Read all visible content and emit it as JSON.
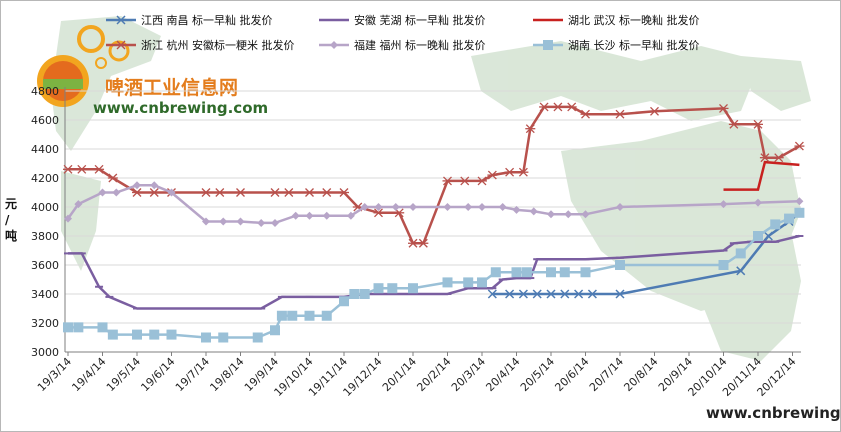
{
  "logo": {
    "name": "啤酒工业信息网",
    "url": "www.cnbrewing.com"
  },
  "footer_url": "www.cnbrewing.com",
  "colors": {
    "jiangxi": "#4e7bb3",
    "anhui": "#7a5ea0",
    "hubei": "#c8211f",
    "zhejiang": "#b8514c",
    "fujian": "#b7a5c8",
    "hunan": "#9ac0d7",
    "gridline": "#d9d9d9",
    "map": "#d4e3d2"
  },
  "chart_data": {
    "type": "line",
    "ylabel": "元/吨",
    "ylim": [
      3000,
      4800
    ],
    "yticks": [
      3000,
      3200,
      3400,
      3600,
      3800,
      4000,
      4200,
      4400,
      4600,
      4800
    ],
    "x_labels": [
      "19/3/14",
      "19/4/14",
      "19/5/14",
      "19/6/14",
      "19/7/14",
      "19/8/14",
      "19/9/14",
      "19/10/14",
      "19/11/14",
      "19/12/14",
      "20/1/14",
      "20/2/14",
      "20/3/14",
      "20/4/14",
      "20/5/14",
      "20/6/14",
      "20/7/14",
      "20/8/14",
      "20/9/14",
      "20/10/14",
      "20/11/14",
      "20/12/14"
    ],
    "grid": "horizontal",
    "legend_placement": "top",
    "series": [
      {
        "name": "江西 南昌 标一早籼 批发价",
        "marker": "x",
        "points": [
          [
            12.3,
            3400
          ],
          [
            12.8,
            3400
          ],
          [
            13.2,
            3400
          ],
          [
            13.6,
            3400
          ],
          [
            14.0,
            3400
          ],
          [
            14.4,
            3400
          ],
          [
            14.8,
            3400
          ],
          [
            15.2,
            3400
          ],
          [
            16.0,
            3400
          ],
          [
            19.5,
            3560
          ],
          [
            20.3,
            3800
          ],
          [
            20.9,
            3900
          ],
          [
            21.2,
            3960
          ]
        ]
      },
      {
        "name": "安徽 芜湖 标一早籼 批发价",
        "marker": "dash",
        "points": [
          [
            0,
            3680
          ],
          [
            0.4,
            3680
          ],
          [
            0.9,
            3450
          ],
          [
            1.2,
            3380
          ],
          [
            2.0,
            3300
          ],
          [
            3.0,
            3300
          ],
          [
            4.0,
            3300
          ],
          [
            5.0,
            3300
          ],
          [
            5.6,
            3300
          ],
          [
            6.2,
            3380
          ],
          [
            7.0,
            3380
          ],
          [
            8.0,
            3380
          ],
          [
            8.6,
            3400
          ],
          [
            10.0,
            3400
          ],
          [
            11.0,
            3400
          ],
          [
            11.6,
            3440
          ],
          [
            12.3,
            3440
          ],
          [
            12.6,
            3500
          ],
          [
            13.0,
            3510
          ],
          [
            13.4,
            3510
          ],
          [
            13.6,
            3640
          ],
          [
            14.0,
            3640
          ],
          [
            14.4,
            3640
          ],
          [
            15.0,
            3640
          ],
          [
            16.0,
            3650
          ],
          [
            19.0,
            3700
          ],
          [
            19.3,
            3750
          ],
          [
            19.8,
            3760
          ],
          [
            20.5,
            3760
          ],
          [
            21.2,
            3800
          ]
        ]
      },
      {
        "name": "湖北 武汉 标一晚籼 批发价",
        "marker": "none",
        "points": [
          [
            19.0,
            4120
          ],
          [
            20.0,
            4120
          ],
          [
            20.2,
            4310
          ],
          [
            21.2,
            4290
          ]
        ]
      },
      {
        "name": "浙江 杭州 安徽标一粳米 批发价",
        "marker": "star",
        "points": [
          [
            0,
            4260
          ],
          [
            0.4,
            4260
          ],
          [
            0.9,
            4260
          ],
          [
            1.3,
            4200
          ],
          [
            2.0,
            4100
          ],
          [
            2.5,
            4100
          ],
          [
            3.0,
            4100
          ],
          [
            4.0,
            4100
          ],
          [
            4.4,
            4100
          ],
          [
            5.0,
            4100
          ],
          [
            6.0,
            4100
          ],
          [
            6.4,
            4100
          ],
          [
            7.0,
            4100
          ],
          [
            7.5,
            4100
          ],
          [
            8.0,
            4100
          ],
          [
            8.4,
            4000
          ],
          [
            9.0,
            3960
          ],
          [
            9.6,
            3960
          ],
          [
            10.0,
            3750
          ],
          [
            10.3,
            3750
          ],
          [
            11.0,
            4180
          ],
          [
            11.5,
            4180
          ],
          [
            12.0,
            4180
          ],
          [
            12.3,
            4220
          ],
          [
            12.8,
            4240
          ],
          [
            13.2,
            4240
          ],
          [
            13.4,
            4540
          ],
          [
            13.8,
            4690
          ],
          [
            14.2,
            4690
          ],
          [
            14.6,
            4690
          ],
          [
            15.0,
            4640
          ],
          [
            16.0,
            4640
          ],
          [
            17.0,
            4660
          ],
          [
            19.0,
            4680
          ],
          [
            19.3,
            4570
          ],
          [
            20.0,
            4570
          ],
          [
            20.2,
            4340
          ],
          [
            20.6,
            4340
          ],
          [
            21.2,
            4420
          ]
        ]
      },
      {
        "name": "福建 福州 标一晚籼 批发价",
        "marker": "diamond",
        "points": [
          [
            0,
            3920
          ],
          [
            0.3,
            4020
          ],
          [
            1.0,
            4100
          ],
          [
            1.4,
            4100
          ],
          [
            2.0,
            4150
          ],
          [
            2.5,
            4150
          ],
          [
            3.0,
            4100
          ],
          [
            4.0,
            3900
          ],
          [
            4.5,
            3900
          ],
          [
            5.0,
            3900
          ],
          [
            5.6,
            3890
          ],
          [
            6.0,
            3890
          ],
          [
            6.6,
            3940
          ],
          [
            7.0,
            3940
          ],
          [
            7.5,
            3940
          ],
          [
            8.2,
            3940
          ],
          [
            8.6,
            4000
          ],
          [
            9.0,
            4000
          ],
          [
            9.5,
            4000
          ],
          [
            10.0,
            4000
          ],
          [
            11.0,
            4000
          ],
          [
            11.6,
            4000
          ],
          [
            12.0,
            4000
          ],
          [
            12.6,
            4000
          ],
          [
            13.0,
            3980
          ],
          [
            13.5,
            3970
          ],
          [
            14.0,
            3950
          ],
          [
            14.5,
            3950
          ],
          [
            15.0,
            3950
          ],
          [
            16.0,
            4000
          ],
          [
            19.0,
            4020
          ],
          [
            20.0,
            4030
          ],
          [
            21.2,
            4040
          ]
        ]
      },
      {
        "name": "湖南 长沙 标一早籼 批发价",
        "marker": "square",
        "points": [
          [
            0,
            3170
          ],
          [
            0.3,
            3170
          ],
          [
            1.0,
            3170
          ],
          [
            1.3,
            3120
          ],
          [
            2.0,
            3120
          ],
          [
            2.5,
            3120
          ],
          [
            3.0,
            3120
          ],
          [
            4.0,
            3100
          ],
          [
            4.5,
            3100
          ],
          [
            5.5,
            3100
          ],
          [
            6.0,
            3150
          ],
          [
            6.2,
            3250
          ],
          [
            6.5,
            3250
          ],
          [
            7.0,
            3250
          ],
          [
            7.5,
            3250
          ],
          [
            8.0,
            3350
          ],
          [
            8.3,
            3400
          ],
          [
            8.6,
            3400
          ],
          [
            9.0,
            3440
          ],
          [
            9.4,
            3440
          ],
          [
            10.0,
            3440
          ],
          [
            11.0,
            3480
          ],
          [
            11.6,
            3480
          ],
          [
            12.0,
            3480
          ],
          [
            12.4,
            3550
          ],
          [
            13.0,
            3550
          ],
          [
            13.3,
            3550
          ],
          [
            14.0,
            3550
          ],
          [
            14.4,
            3550
          ],
          [
            15.0,
            3550
          ],
          [
            16.0,
            3600
          ],
          [
            19.0,
            3600
          ],
          [
            19.5,
            3680
          ],
          [
            20.0,
            3800
          ],
          [
            20.5,
            3880
          ],
          [
            20.9,
            3920
          ],
          [
            21.2,
            3960
          ]
        ]
      }
    ]
  }
}
